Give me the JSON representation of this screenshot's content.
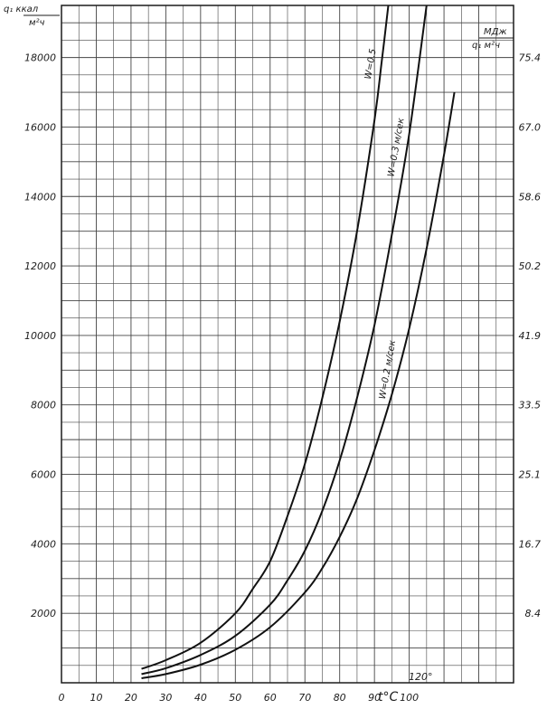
{
  "chart_data": {
    "type": "line",
    "x_axis": {
      "label": "t°C",
      "range": [
        0,
        130
      ],
      "tick_labels": [
        "0",
        "10",
        "20",
        "30",
        "40",
        "50",
        "60",
        "70",
        "80",
        "90",
        "100"
      ],
      "tick_values": [
        0,
        10,
        20,
        30,
        40,
        50,
        60,
        70,
        80,
        90,
        100
      ]
    },
    "y_axis_left": {
      "unit_top": "q₁ ккал",
      "unit_bottom": "м²ч",
      "range": [
        0,
        19500
      ],
      "tick_labels": [
        "2000",
        "4000",
        "6000",
        "8000",
        "10000",
        "12000",
        "14000",
        "16000",
        "18000"
      ],
      "tick_values": [
        2000,
        4000,
        6000,
        8000,
        10000,
        12000,
        14000,
        16000,
        18000
      ]
    },
    "y_axis_right": {
      "unit_top": "МДж",
      "unit_bottom": "q₁ м²ч",
      "tick_labels": [
        "8.4",
        "16.7",
        "25.1",
        "33.5",
        "41.9",
        "50.2",
        "58.6",
        "67.0",
        "75.4"
      ],
      "tick_values": [
        2000,
        4000,
        6000,
        8000,
        10000,
        12000,
        14000,
        16000,
        18000
      ]
    },
    "annotation": "120°",
    "grid": true,
    "series": [
      {
        "name": "W=0.5",
        "x": [
          23,
          30,
          40,
          50,
          55,
          60,
          65,
          70,
          75,
          80,
          85,
          90,
          92,
          94
        ],
        "y": [
          400,
          650,
          1150,
          2000,
          2700,
          3500,
          4800,
          6300,
          8200,
          10400,
          13000,
          16200,
          17800,
          19500
        ]
      },
      {
        "name": "W=0.3 м/сек",
        "x": [
          23,
          30,
          40,
          50,
          60,
          65,
          70,
          75,
          80,
          85,
          90,
          95,
          100,
          105
        ],
        "y": [
          250,
          420,
          800,
          1350,
          2250,
          2950,
          3800,
          4950,
          6400,
          8200,
          10300,
          12900,
          15800,
          19500
        ]
      },
      {
        "name": "W=0.2 м/сек",
        "x": [
          23,
          30,
          40,
          50,
          60,
          70,
          75,
          80,
          85,
          90,
          95,
          100,
          105,
          110,
          113
        ],
        "y": [
          130,
          250,
          520,
          950,
          1600,
          2600,
          3300,
          4200,
          5300,
          6700,
          8300,
          10200,
          12500,
          15200,
          17000
        ]
      }
    ]
  }
}
